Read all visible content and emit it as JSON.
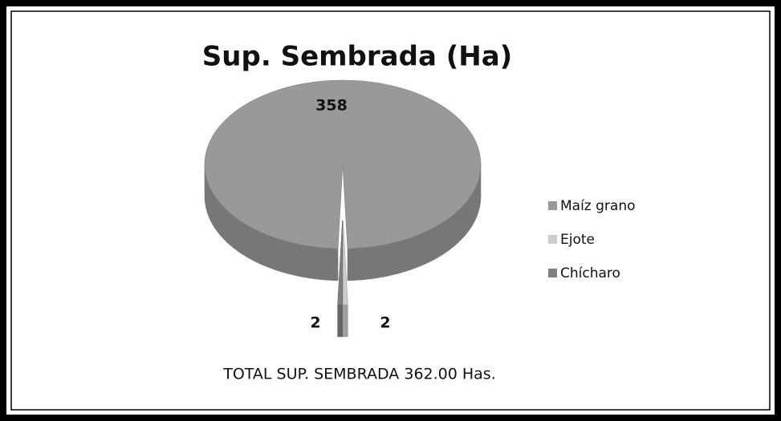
{
  "chart_data": {
    "type": "pie",
    "title": "Sup. Sembrada (Ha)",
    "categories": [
      "Maíz grano",
      "Ejote",
      "Chícharo"
    ],
    "values": [
      358,
      2,
      2
    ],
    "colors": [
      "#999999",
      "#cccccc",
      "#808080"
    ],
    "legend": "right",
    "annotation": "TOTAL SUP. SEMBRADA  362.00 Has."
  }
}
